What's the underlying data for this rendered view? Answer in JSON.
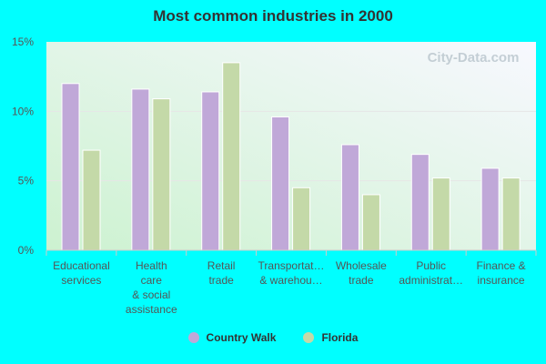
{
  "chart_data": {
    "type": "bar",
    "title": "Most common industries in 2000",
    "categories": [
      [
        "Educational",
        "services"
      ],
      [
        "Health",
        "care",
        "& social",
        "assistance"
      ],
      [
        "Retail",
        "trade"
      ],
      [
        "Transportat…",
        "& warehou…"
      ],
      [
        "Wholesale",
        "trade"
      ],
      [
        "Public",
        "administrat…"
      ],
      [
        "Finance &",
        "insurance"
      ]
    ],
    "series": [
      {
        "name": "Country Walk",
        "color": "#c0a8d8",
        "values": [
          12.0,
          11.6,
          11.4,
          9.6,
          7.6,
          6.9,
          5.9
        ]
      },
      {
        "name": "Florida",
        "color": "#c4d9a8",
        "values": [
          7.2,
          10.9,
          13.5,
          4.5,
          4.0,
          5.2,
          5.2
        ]
      }
    ],
    "ylim": [
      0,
      15
    ],
    "yticks": [
      "0%",
      "5%",
      "10%",
      "15%"
    ],
    "ytick_values": [
      0,
      5,
      10,
      15
    ],
    "grid": true,
    "legend_placement": "bottom",
    "watermark": "City-Data.com"
  }
}
